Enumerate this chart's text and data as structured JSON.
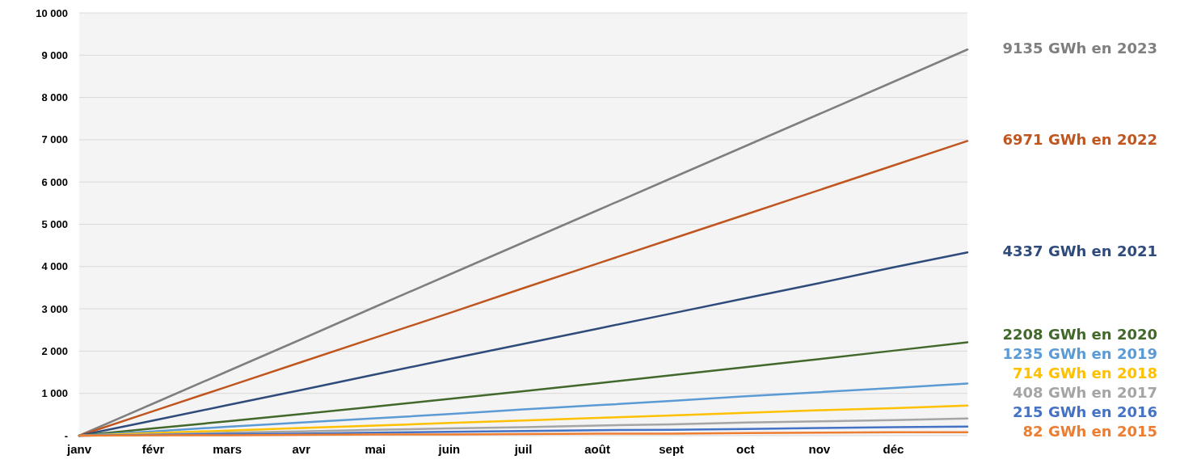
{
  "chart_data": {
    "type": "line",
    "categories": [
      "janv",
      "févr",
      "mars",
      "avr",
      "mai",
      "juin",
      "juil",
      "août",
      "sept",
      "oct",
      "nov",
      "déc",
      null
    ],
    "ylim": [
      0,
      10000
    ],
    "yticks": [
      {
        "value": 0,
        "label": "-"
      },
      {
        "value": 1000,
        "label": "1 000"
      },
      {
        "value": 2000,
        "label": "2 000"
      },
      {
        "value": 3000,
        "label": "3 000"
      },
      {
        "value": 4000,
        "label": "4 000"
      },
      {
        "value": 5000,
        "label": "5 000"
      },
      {
        "value": 6000,
        "label": "6 000"
      },
      {
        "value": 7000,
        "label": "7 000"
      },
      {
        "value": 8000,
        "label": "8 000"
      },
      {
        "value": 9000,
        "label": "9 000"
      },
      {
        "value": 10000,
        "label": "10 000"
      }
    ],
    "grid": "y",
    "marker": "none",
    "line_style": "solid",
    "series": [
      {
        "name": "9135 GWh en 2023",
        "color": "#7f7f7f",
        "values": [
          0,
          760,
          1520,
          2280,
          3050,
          3810,
          4570,
          5330,
          6090,
          6850,
          7610,
          8370,
          9135
        ]
      },
      {
        "name": "6971 GWh en 2022",
        "color": "#c0561f",
        "values": [
          0,
          580,
          1160,
          1740,
          2320,
          2900,
          3490,
          4070,
          4650,
          5230,
          5810,
          6390,
          6971
        ]
      },
      {
        "name": "4337 GWh en 2021",
        "color": "#2f4b7c",
        "values": [
          0,
          360,
          720,
          1080,
          1450,
          1810,
          2170,
          2530,
          2890,
          3250,
          3610,
          3980,
          4337
        ]
      },
      {
        "name": "2208 GWh en 2020",
        "color": "#43682b",
        "values": [
          0,
          170,
          340,
          510,
          690,
          870,
          1050,
          1240,
          1430,
          1620,
          1810,
          2010,
          2208
        ]
      },
      {
        "name": "1235 GWh en 2019",
        "color": "#5b9bd5",
        "values": [
          0,
          100,
          210,
          310,
          410,
          510,
          620,
          720,
          820,
          930,
          1030,
          1130,
          1235
        ]
      },
      {
        "name": "714 GWh en 2018",
        "color": "#ffc000",
        "values": [
          0,
          60,
          120,
          180,
          240,
          300,
          360,
          420,
          480,
          540,
          600,
          650,
          714
        ]
      },
      {
        "name": "408 GWh en 2017",
        "color": "#a5a5a5",
        "values": [
          0,
          30,
          70,
          100,
          140,
          170,
          200,
          240,
          270,
          310,
          340,
          370,
          408
        ]
      },
      {
        "name": "215 GWh en 2016",
        "color": "#4472c4",
        "values": [
          0,
          20,
          40,
          50,
          70,
          90,
          110,
          130,
          140,
          160,
          180,
          200,
          215
        ]
      },
      {
        "name": "82 GWh en 2015",
        "color": "#ed7d31",
        "values": [
          0,
          10,
          10,
          20,
          30,
          30,
          40,
          50,
          50,
          60,
          70,
          80,
          82
        ]
      }
    ]
  }
}
